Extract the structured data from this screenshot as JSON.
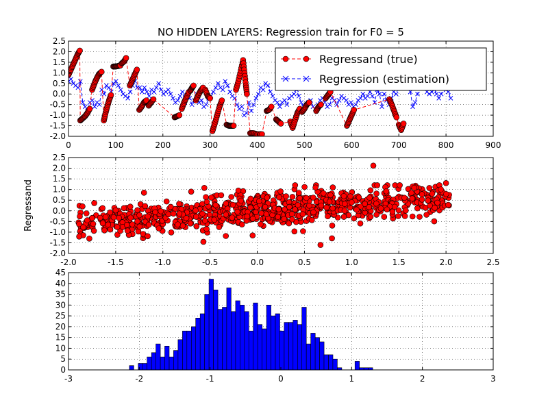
{
  "chart_data": [
    {
      "type": "line",
      "title": "NO HIDDEN LAYERS: Regression train for F0 = 5",
      "xlabel": "",
      "ylabel": "",
      "xlim": [
        0,
        900
      ],
      "ylim": [
        -2.0,
        2.5
      ],
      "xticks": [
        "0",
        "100",
        "200",
        "300",
        "400",
        "500",
        "600",
        "700",
        "800",
        "900"
      ],
      "yticks": [
        "-2.0",
        "-1.5",
        "-1.0",
        "-0.5",
        "0.0",
        "0.5",
        "1.0",
        "1.5",
        "2.0",
        "2.5"
      ],
      "grid": true,
      "legend_position": "top-right",
      "series": [
        {
          "name": "Regressand (true)",
          "style": "red circles, dashed line",
          "color": "#ff0000",
          "segments": [
            [
              [
                0,
                0.9
              ],
              [
                5,
                1.15
              ],
              [
                10,
                1.4
              ],
              [
                15,
                1.65
              ],
              [
                20,
                1.9
              ],
              [
                24,
                2.05
              ]
            ],
            [
              [
                25,
                -1.25
              ],
              [
                30,
                -1.15
              ],
              [
                35,
                -1.05
              ],
              [
                40,
                -0.9
              ],
              [
                45,
                -0.7
              ]
            ],
            [
              [
                50,
                0.2
              ],
              [
                55,
                0.5
              ],
              [
                60,
                0.75
              ],
              [
                65,
                0.95
              ],
              [
                70,
                1.05
              ]
            ],
            [
              [
                75,
                -1.25
              ],
              [
                78,
                -0.95
              ],
              [
                82,
                -0.6
              ],
              [
                86,
                -0.3
              ],
              [
                90,
                -0.05
              ]
            ],
            [
              [
                95,
                1.3
              ],
              [
                100,
                1.3
              ],
              [
                105,
                1.32
              ],
              [
                110,
                1.35
              ]
            ],
            [
              [
                113,
                1.45
              ],
              [
                118,
                1.55
              ],
              [
                122,
                1.7
              ]
            ],
            [
              [
                130,
                0.4
              ],
              [
                135,
                0.65
              ],
              [
                140,
                0.9
              ],
              [
                145,
                1.15
              ]
            ],
            [
              [
                150,
                -0.75
              ],
              [
                155,
                -0.6
              ],
              [
                160,
                -0.4
              ],
              [
                165,
                -0.3
              ]
            ],
            [
              [
                170,
                -0.55
              ],
              [
                175,
                -0.4
              ],
              [
                180,
                -0.25
              ]
            ],
            [
              [
                225,
                -1.1
              ],
              [
                230,
                -1.05
              ],
              [
                235,
                -1.0
              ]
            ],
            [
              [
                240,
                -0.7
              ],
              [
                245,
                -0.4
              ],
              [
                250,
                -0.15
              ],
              [
                255,
                0.1
              ]
            ],
            [
              [
                258,
                0.15
              ],
              [
                262,
                0.3
              ],
              [
                265,
                0.4
              ]
            ],
            [
              [
                270,
                -0.3
              ],
              [
                275,
                -0.05
              ],
              [
                280,
                0.15
              ],
              [
                285,
                0.3
              ]
            ],
            [
              [
                290,
                0.2
              ],
              [
                295,
                -0.1
              ],
              [
                300,
                -0.2
              ]
            ],
            [
              [
                305,
                -1.75
              ],
              [
                310,
                -1.4
              ],
              [
                315,
                -1.0
              ],
              [
                320,
                -0.6
              ],
              [
                325,
                -0.3
              ]
            ],
            [
              [
                335,
                -1.45
              ],
              [
                340,
                -1.5
              ],
              [
                345,
                -1.5
              ],
              [
                350,
                -1.5
              ]
            ],
            [
              [
                355,
                0.2
              ],
              [
                360,
                0.6
              ],
              [
                365,
                1.1
              ],
              [
                370,
                1.6
              ],
              [
                373,
                1.0
              ],
              [
                376,
                0.4
              ],
              [
                378,
                0.0
              ]
            ],
            [
              [
                385,
                -1.85
              ],
              [
                392,
                -1.85
              ],
              [
                400,
                -1.9
              ],
              [
                410,
                -1.9
              ]
            ],
            [
              [
                420,
                -0.8
              ],
              [
                425,
                -0.75
              ],
              [
                430,
                -0.6
              ]
            ],
            [
              [
                440,
                -1.2
              ],
              [
                445,
                -1.3
              ],
              [
                450,
                -1.4
              ]
            ],
            [
              [
                470,
                -1.3
              ],
              [
                475,
                -1.6
              ],
              [
                480,
                -1.25
              ],
              [
                485,
                -0.9
              ],
              [
                490,
                -0.7
              ]
            ],
            [
              [
                495,
                -0.85
              ],
              [
                500,
                -0.7
              ],
              [
                505,
                -0.5
              ],
              [
                510,
                -0.4
              ]
            ],
            [
              [
                525,
                -0.8
              ],
              [
                530,
                -0.6
              ],
              [
                535,
                -0.5
              ]
            ],
            [
              [
                545,
                -0.2
              ],
              [
                550,
                -0.05
              ],
              [
                555,
                0.1
              ]
            ],
            [
              [
                590,
                -1.5
              ],
              [
                595,
                -1.25
              ],
              [
                600,
                -1.0
              ],
              [
                605,
                -0.75
              ]
            ],
            [
              [
                680,
                -0.25
              ],
              [
                685,
                -0.5
              ],
              [
                690,
                -0.8
              ],
              [
                695,
                -1.1
              ]
            ],
            [
              [
                700,
                -1.45
              ],
              [
                705,
                -1.7
              ],
              [
                710,
                -1.4
              ]
            ]
          ]
        },
        {
          "name": "Regression (estimation)",
          "style": "blue x markers, dashed line",
          "color": "#0000ff",
          "x_start": 0,
          "x_end": 810,
          "values": [
            0.6,
            0.7,
            0.5,
            0.4,
            0.3,
            0.6,
            -0.4,
            -0.6,
            -0.8,
            -0.4,
            -0.3,
            -0.6,
            -0.4,
            -0.5,
            0.2,
            0.0,
            0.4,
            0.3,
            0.1,
            0.5,
            0.6,
            0.4,
            0.2,
            0.0,
            -0.1,
            -0.2,
            0.1,
            0.4,
            0.6,
            0.3,
            0.3,
            0.1,
            0.3,
            0.1,
            -0.1,
            0.2,
            0.1,
            0.3,
            0.5,
            0.2,
            0.0,
            0.1,
            0.2,
            0.0,
            -0.2,
            -0.4,
            -0.3,
            -0.1,
            0.1,
            -0.4,
            -0.1,
            -0.2,
            -0.5,
            -0.3,
            0.0,
            -0.4,
            -0.3,
            -0.6,
            -0.5,
            -0.2,
            -0.1,
            0.1,
            0.3,
            0.5,
            0.3,
            0.2,
            0.6,
            0.4,
            0.1,
            -0.1,
            -0.2,
            -0.5,
            -0.7,
            -0.6,
            -1.0,
            -0.9,
            -0.4,
            -0.8,
            -0.5,
            -0.2,
            0.0,
            0.3,
            0.2,
            0.5,
            0.4,
            0.1,
            -0.1,
            -0.3,
            -0.4,
            -0.6,
            -0.4,
            -0.3,
            -0.5,
            -0.2,
            -0.1,
            0.0,
            0.2,
            -0.1,
            -0.4,
            -0.6,
            -0.5,
            -0.4,
            -0.3,
            -0.6,
            -0.7,
            -0.5,
            -0.3,
            -0.2,
            -0.4,
            -0.6,
            -0.5,
            -0.2,
            -0.3,
            -0.5,
            -0.3,
            -0.1,
            -0.2,
            -0.3,
            -0.5,
            -0.4,
            -0.6,
            -0.5,
            -0.3,
            -0.2,
            0.0,
            -0.2,
            -0.1,
            0.1,
            -0.1,
            -0.4,
            0.2,
            0.0,
            -0.6,
            0.0,
            -0.3,
            -0.5,
            -0.2,
            0.1,
            0.0,
            0.3,
            0.4,
            0.5,
            0.4,
            0.3,
            0.1,
            -0.6,
            -0.4,
            0.0,
            0.4,
            0.6,
            0.4,
            0.1,
            0.0,
            0.1,
            0.2,
            0.0,
            -0.2,
            0.0,
            0.3,
            0.2,
            0.1,
            -0.2
          ]
        }
      ]
    },
    {
      "type": "scatter",
      "xlabel": "",
      "ylabel": "Regressand",
      "xlim": [
        -2.0,
        2.5
      ],
      "ylim": [
        -2.0,
        2.5
      ],
      "xticks": [
        "-2.0",
        "-1.5",
        "-1.0",
        "-0.5",
        "0.0",
        "0.5",
        "1.0",
        "1.5",
        "2.0",
        "2.5"
      ],
      "yticks": [
        "-2.0",
        "-1.5",
        "-1.0",
        "-0.5",
        "0.0",
        "0.5",
        "1.0",
        "1.5",
        "2.0",
        "2.5"
      ],
      "grid": true,
      "series": [
        {
          "style": "red circles",
          "color": "#ff0000",
          "trend": {
            "slope": 0.3,
            "intercept": 0.0
          },
          "x_range": [
            -1.9,
            2.05
          ],
          "noise_sd": 0.38,
          "point_count": 820,
          "outliers": [
            [
              1.23,
              2.12
            ],
            [
              0.67,
              -1.6
            ],
            [
              2.0,
              1.3
            ],
            [
              -1.2,
              0.85
            ],
            [
              -0.57,
              -1.45
            ],
            [
              -0.7,
              0.9
            ],
            [
              -0.2,
              0.95
            ],
            [
              0.8,
              1.1
            ]
          ]
        }
      ]
    },
    {
      "type": "bar",
      "subtype": "histogram",
      "xlabel": "",
      "ylabel": "",
      "xlim": [
        -3,
        3
      ],
      "ylim": [
        0,
        45
      ],
      "xticks": [
        "-3",
        "-2",
        "-1",
        "0",
        "1",
        "2",
        "3"
      ],
      "yticks": [
        "0",
        "5",
        "10",
        "15",
        "20",
        "25",
        "30",
        "35",
        "40",
        "45"
      ],
      "grid": true,
      "color": "#0000ff",
      "bin_start": -2.14,
      "bin_width": 0.0625,
      "values": [
        2,
        0,
        3,
        3,
        6,
        8,
        12,
        6,
        11,
        6,
        9,
        14,
        18,
        18,
        20,
        24,
        26,
        35,
        42,
        37,
        28,
        29,
        38,
        27,
        32,
        30,
        27,
        18,
        31,
        21,
        19,
        30,
        25,
        26,
        18,
        22,
        22,
        23,
        21,
        29,
        12,
        17,
        15,
        13,
        7,
        7,
        5,
        1,
        0,
        0,
        0,
        4,
        1,
        1,
        1
      ]
    }
  ]
}
